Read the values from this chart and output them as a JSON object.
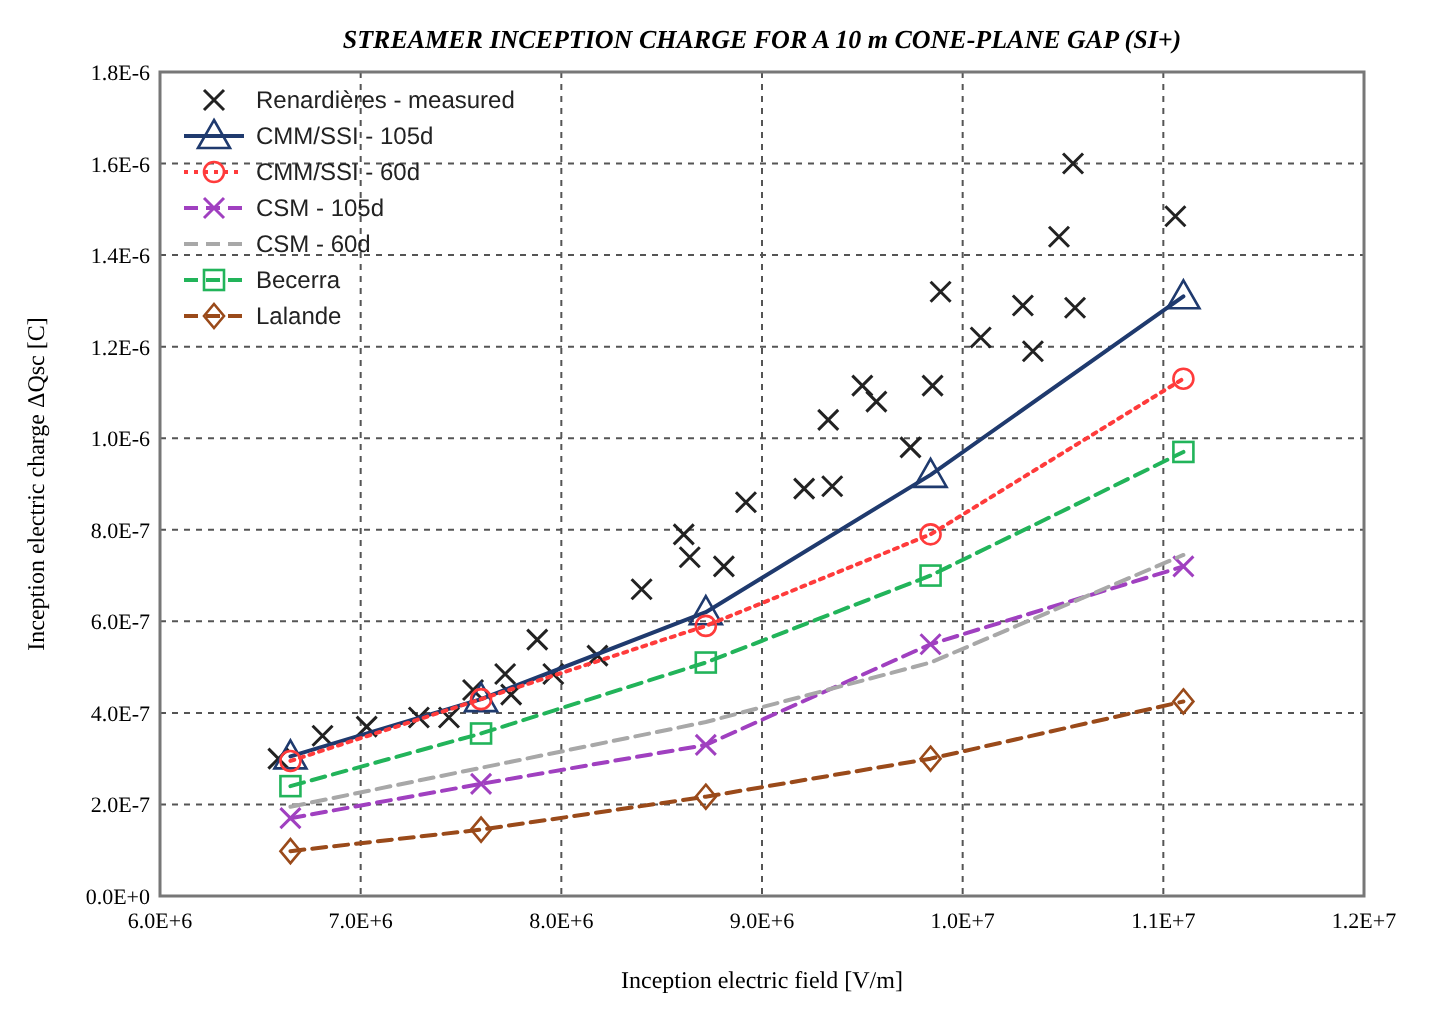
{
  "chart_data": {
    "type": "line",
    "title": "STREAMER INCEPTION CHARGE FOR A 10 m CONE-PLANE GAP (SI+)",
    "xlabel": "Inception electric field [V/m]",
    "ylabel": "Inception electric charge ΔQsc [C]",
    "xlim": [
      6000000,
      12000000
    ],
    "ylim": [
      0,
      1.8e-06
    ],
    "xticks": [
      {
        "value": 6000000,
        "label": "6.0E+6"
      },
      {
        "value": 7000000,
        "label": "7.0E+6"
      },
      {
        "value": 8000000,
        "label": "8.0E+6"
      },
      {
        "value": 9000000,
        "label": "9.0E+6"
      },
      {
        "value": 10000000,
        "label": "1.0E+7"
      },
      {
        "value": 11000000,
        "label": "1.1E+7"
      },
      {
        "value": 12000000,
        "label": "1.2E+7"
      }
    ],
    "yticks": [
      {
        "value": 0,
        "label": "0.0E+0"
      },
      {
        "value": 2e-07,
        "label": "2.0E-7"
      },
      {
        "value": 4e-07,
        "label": "4.0E-7"
      },
      {
        "value": 6e-07,
        "label": "6.0E-7"
      },
      {
        "value": 8e-07,
        "label": "8.0E-7"
      },
      {
        "value": 1e-06,
        "label": "1.0E-6"
      },
      {
        "value": 1.2e-06,
        "label": "1.2E-6"
      },
      {
        "value": 1.4e-06,
        "label": "1.4E-6"
      },
      {
        "value": 1.6e-06,
        "label": "1.6E-6"
      },
      {
        "value": 1.8e-06,
        "label": "1.8E-6"
      }
    ],
    "grid": true,
    "legend": "top left",
    "series": [
      {
        "name": "Renardières - measured",
        "type": "scatter",
        "marker": "cross",
        "color": "#222222",
        "x": [
          6590000,
          6810000,
          7030000,
          7290000,
          7440000,
          7560000,
          7720000,
          7750000,
          7960000,
          7880000,
          8180000,
          8400000,
          8610000,
          8640000,
          8810000,
          8920000,
          9210000,
          9350000,
          9740000,
          9850000,
          9500000,
          9570000,
          9330000,
          9890000,
          10090000,
          10300000,
          10350000,
          10560000,
          10480000,
          10550000,
          11060000
        ],
        "values": [
          3e-07,
          3.5e-07,
          3.7e-07,
          3.9e-07,
          3.9e-07,
          4.5e-07,
          4.85e-07,
          4.4e-07,
          4.85e-07,
          5.6e-07,
          5.25e-07,
          6.7e-07,
          7.9e-07,
          7.4e-07,
          7.2e-07,
          8.6e-07,
          8.9e-07,
          8.95e-07,
          9.8e-07,
          1.115e-06,
          1.115e-06,
          1.08e-06,
          1.04e-06,
          1.32e-06,
          1.22e-06,
          1.29e-06,
          1.19e-06,
          1.285e-06,
          1.44e-06,
          1.6e-06,
          1.485e-06
        ]
      },
      {
        "name": "CMM/SSI - 105d",
        "type": "line",
        "marker": "triangle",
        "line_style": "solid",
        "color": "#1f3a6e",
        "x": [
          6650000,
          7600000,
          8720000,
          9840000,
          11100000
        ],
        "values": [
          3.05e-07,
          4.3e-07,
          6.2e-07,
          9.2e-07,
          1.31e-06
        ]
      },
      {
        "name": "CMM/SSI - 60d",
        "type": "line",
        "marker": "circle",
        "line_style": "dotted",
        "color": "#ff3b3b",
        "x": [
          6650000,
          7600000,
          8720000,
          9840000,
          11100000
        ],
        "values": [
          2.95e-07,
          4.3e-07,
          5.9e-07,
          7.9e-07,
          1.13e-06
        ]
      },
      {
        "name": "CSM - 105d",
        "type": "line",
        "marker": "cross",
        "line_style": "dashed",
        "color": "#a040c0",
        "x": [
          6650000,
          7600000,
          8720000,
          9840000,
          11100000
        ],
        "values": [
          1.7e-07,
          2.45e-07,
          3.3e-07,
          5.5e-07,
          7.2e-07
        ]
      },
      {
        "name": "CSM - 60d",
        "type": "line",
        "marker": "none",
        "line_style": "dashed",
        "color": "#a8a8a8",
        "x": [
          6650000,
          7600000,
          8720000,
          9840000,
          11100000
        ],
        "values": [
          1.95e-07,
          2.8e-07,
          3.8e-07,
          5.1e-07,
          7.45e-07
        ]
      },
      {
        "name": "Becerra",
        "type": "line",
        "marker": "square",
        "line_style": "dashed",
        "color": "#22b45a",
        "x": [
          6650000,
          7600000,
          8720000,
          9840000,
          11100000
        ],
        "values": [
          2.4e-07,
          3.55e-07,
          5.1e-07,
          7e-07,
          9.7e-07
        ]
      },
      {
        "name": "Lalande",
        "type": "line",
        "marker": "diamond",
        "line_style": "dashed",
        "color": "#9a4a1a",
        "x": [
          6650000,
          7600000,
          8720000,
          9840000,
          11100000
        ],
        "values": [
          9.8e-08,
          1.45e-07,
          2.17e-07,
          3e-07,
          4.25e-07
        ]
      }
    ]
  }
}
